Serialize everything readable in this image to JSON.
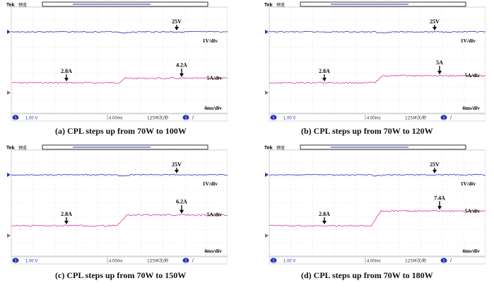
{
  "scope": {
    "brand": "Tek",
    "mode": "预览",
    "ch1_scale": "1.00 V",
    "timebase": "4.00ms",
    "sample_rate": "125M次/秒",
    "trigger_source": "1",
    "trigger_slope": "/",
    "ch1_marker": "1"
  },
  "colors": {
    "voltage_trace": "#2433b8",
    "current_trace": "#d63aa3",
    "grid": "#c9c9c9",
    "trigger_marker": "#e8a000"
  },
  "chart_data": [
    {
      "type": "line",
      "caption": "(a)  CPL steps up from 70W to 100W",
      "voltage_label": "25V",
      "v_scale": "1V/div",
      "current_before_label": "2.8A",
      "current_after_label": "4.2A",
      "i_scale": "5A/div",
      "time_scale": "4ms/div",
      "voltage_V": 25,
      "current_before_A": 2.8,
      "current_after_A": 4.2
    },
    {
      "type": "line",
      "caption": "(b)  CPL steps up from 70W to 120W",
      "voltage_label": "25V",
      "v_scale": "1V/div",
      "current_before_label": "2.8A",
      "current_after_label": "5A",
      "i_scale": "5A/div",
      "time_scale": "4ms/div",
      "voltage_V": 25,
      "current_before_A": 2.8,
      "current_after_A": 5
    },
    {
      "type": "line",
      "caption": "(c)  CPL steps up from 70W to 150W",
      "voltage_label": "25V",
      "v_scale": "1V/div",
      "current_before_label": "2.8A",
      "current_after_label": "6.2A",
      "i_scale": "5A/div",
      "time_scale": "4ms/div",
      "voltage_V": 25,
      "current_before_A": 2.8,
      "current_after_A": 6.2
    },
    {
      "type": "line",
      "caption": "(d)  CPL steps up from 70W to 180W",
      "voltage_label": "25V",
      "v_scale": "1V/div",
      "current_before_label": "2.8A",
      "current_after_label": "7.4A",
      "i_scale": "5A/div",
      "time_scale": "4ms/div",
      "voltage_V": 25,
      "current_before_A": 2.8,
      "current_after_A": 7.4
    }
  ]
}
